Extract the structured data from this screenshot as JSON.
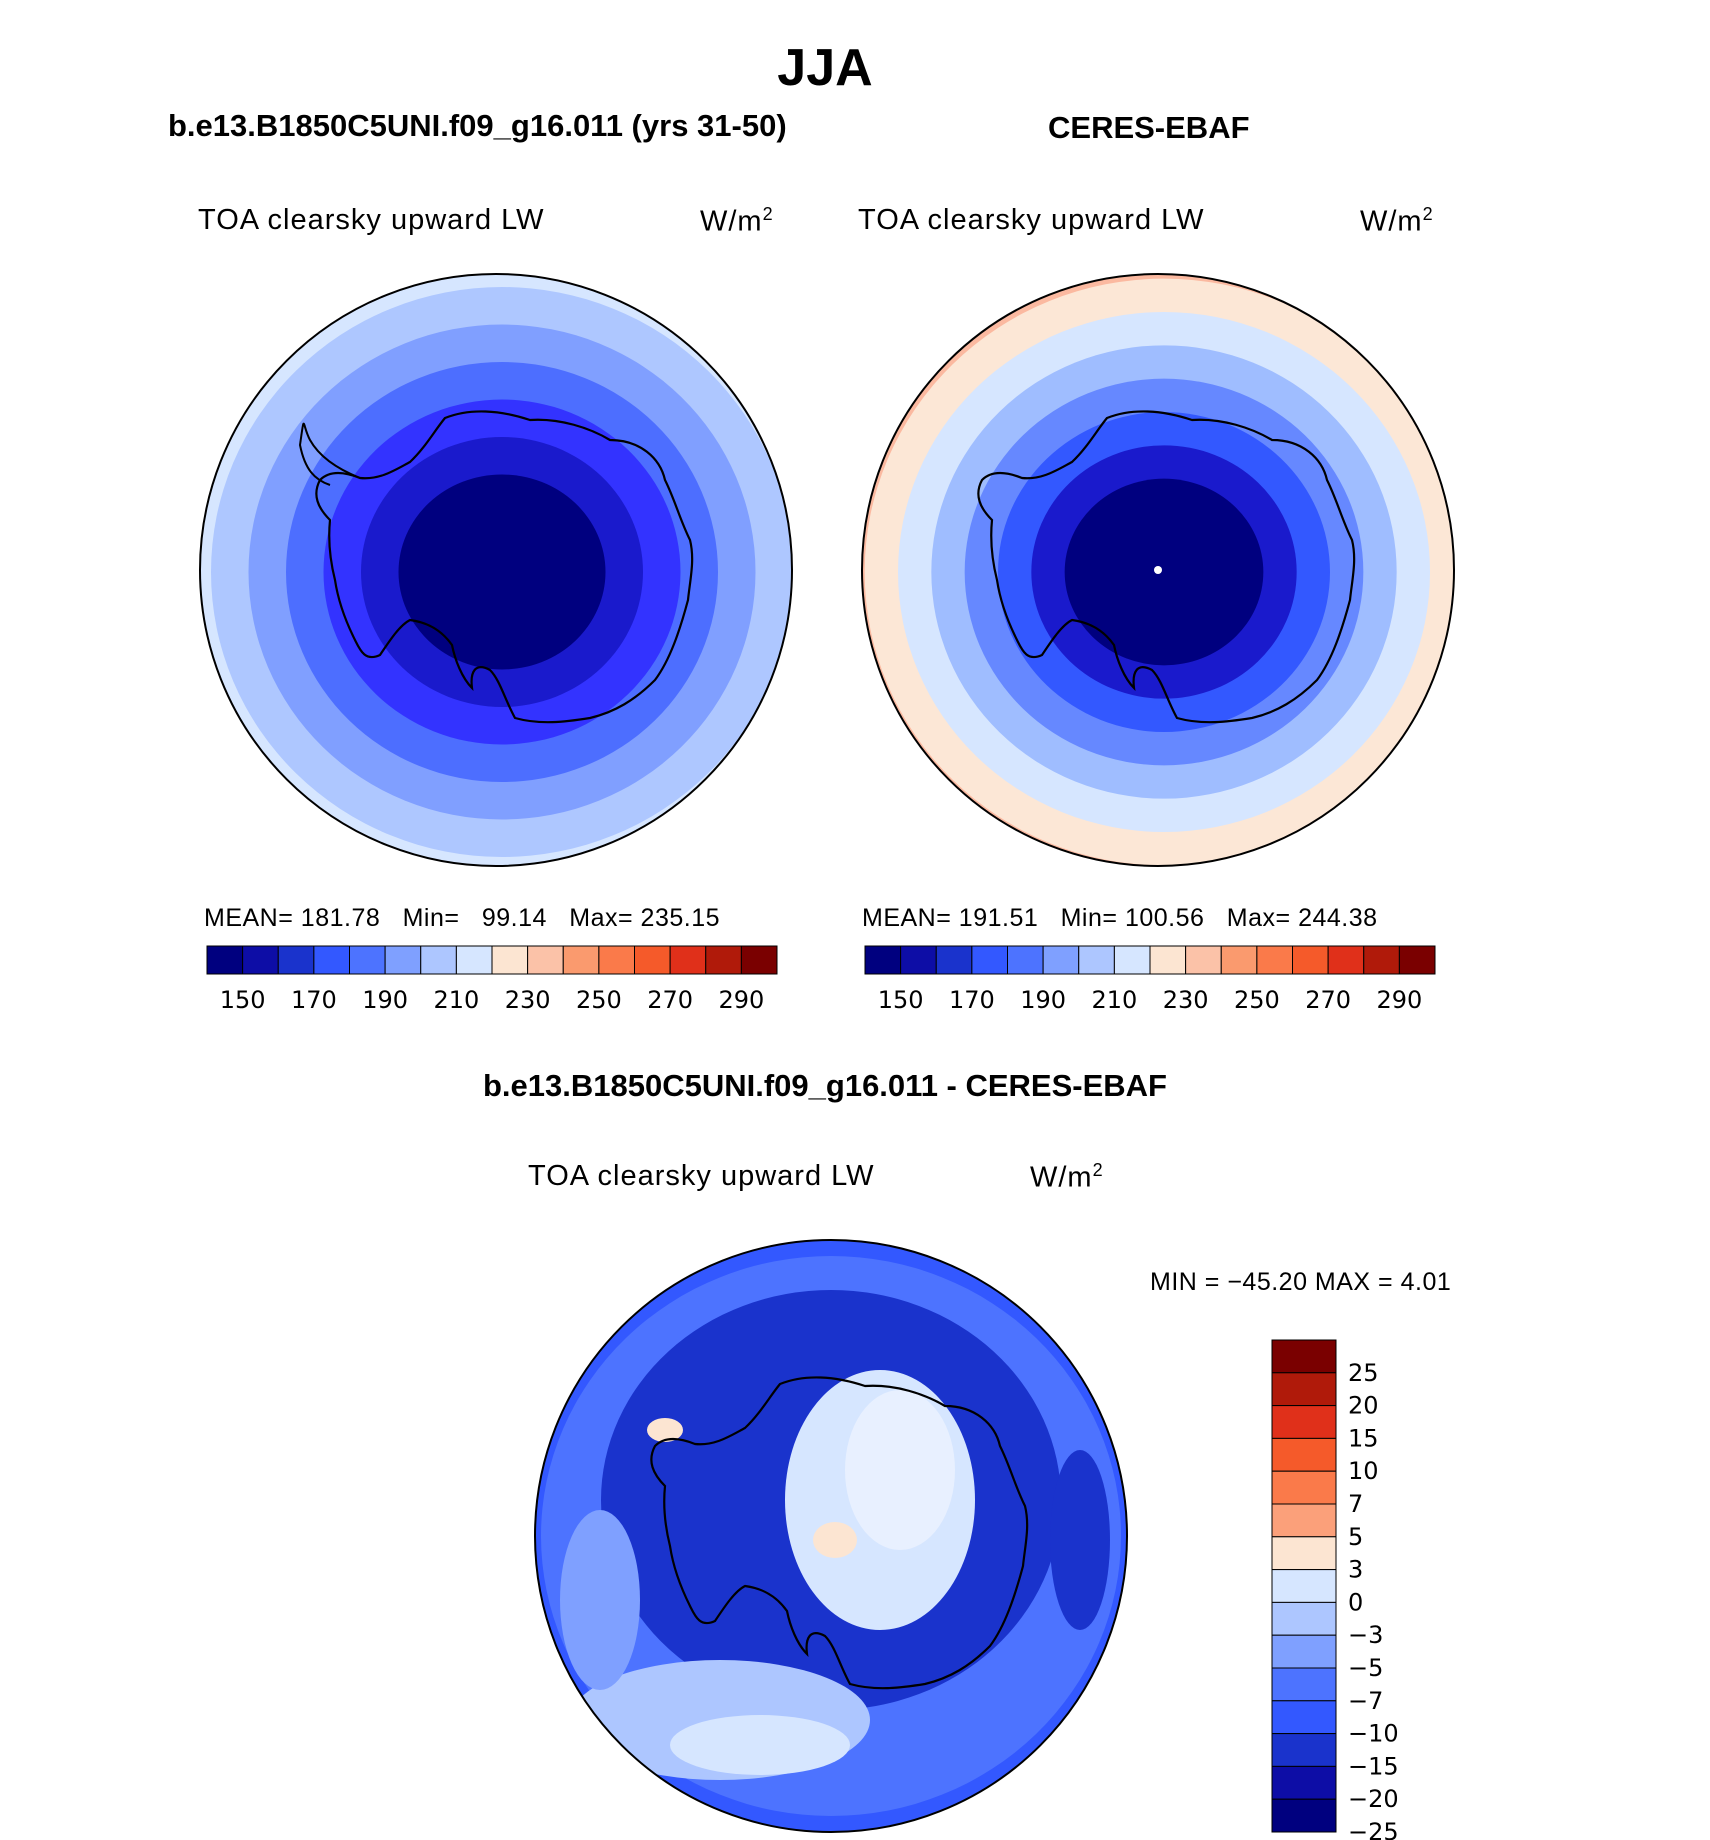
{
  "title": "JJA",
  "panels": [
    {
      "header": "b.e13.B1850C5UNI.f09_g16.011 (yrs 31-50)",
      "variable": "TOA clearsky upward LW",
      "units_base": "W/m",
      "units_exp": "2",
      "mean_label": "MEAN=",
      "mean": "181.78",
      "min_label": "Min=",
      "min": "99.14",
      "max_label": "Max=",
      "max": "235.15",
      "bands": [
        "#00007f",
        "#1a1acc",
        "#3333ff",
        "#4d6eff",
        "#809fff",
        "#aec7ff",
        "#d6e6ff",
        "#fce7d6"
      ]
    },
    {
      "header": "CERES-EBAF",
      "variable": "TOA clearsky upward LW",
      "units_base": "W/m",
      "units_exp": "2",
      "mean_label": "MEAN=",
      "mean": "191.51",
      "min_label": "Min=",
      "min": "100.56",
      "max_label": "Max=",
      "max": "244.38",
      "bands": [
        "#00007f",
        "#1a1acc",
        "#3358ff",
        "#6688ff",
        "#9fbdff",
        "#d6e6ff",
        "#fce7d6",
        "#fbb9a0",
        "#f8906e"
      ]
    }
  ],
  "difference": {
    "header": "b.e13.B1850C5UNI.f09_g16.011 - CERES-EBAF",
    "variable": "TOA clearsky upward LW",
    "units_base": "W/m",
    "units_exp": "2",
    "minmax_text": "MIN = −45.20 MAX =    4.01"
  },
  "colorbar_abs": {
    "colors": [
      "#00007f",
      "#0d0da6",
      "#1a33cc",
      "#3358ff",
      "#4d73ff",
      "#7fa0ff",
      "#adc6ff",
      "#d6e6ff",
      "#fce5d2",
      "#fbc2a8",
      "#fa9a6e",
      "#fa7a4a",
      "#f55a2a",
      "#e0301a",
      "#b01a0a",
      "#7a0000"
    ],
    "ticks": [
      "150",
      "170",
      "190",
      "210",
      "230",
      "250",
      "270",
      "290"
    ]
  },
  "colorbar_diff": {
    "colors": [
      "#7a0000",
      "#b01a0a",
      "#e0301a",
      "#f55a2a",
      "#fa7a4a",
      "#fba07a",
      "#fce5d2",
      "#d6e6ff",
      "#adc6ff",
      "#7fa0ff",
      "#4d73ff",
      "#3358ff",
      "#1a33cc",
      "#0d0da6",
      "#00007f"
    ],
    "ticks": [
      "25",
      "20",
      "15",
      "10",
      "7",
      "5",
      "3",
      "0",
      "−3",
      "−5",
      "−7",
      "−10",
      "−15",
      "−20",
      "−25"
    ]
  }
}
